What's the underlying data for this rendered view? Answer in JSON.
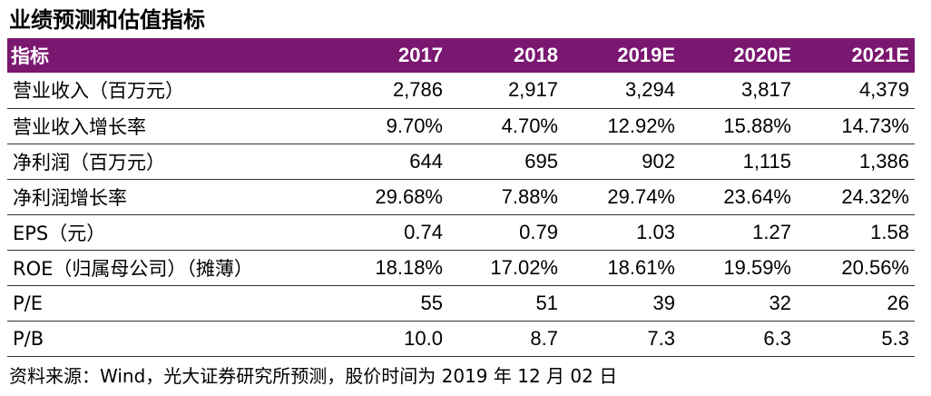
{
  "title": "业绩预测和估值指标",
  "table": {
    "header": {
      "label": "指标",
      "years": [
        "2017",
        "2018",
        "2019E",
        "2020E",
        "2021E"
      ]
    },
    "rows": [
      {
        "label": "营业收入（百万元）",
        "values": [
          "2,786",
          "2,917",
          "3,294",
          "3,817",
          "4,379"
        ]
      },
      {
        "label": "营业收入增长率",
        "values": [
          "9.70%",
          "4.70%",
          "12.92%",
          "15.88%",
          "14.73%"
        ]
      },
      {
        "label": "净利润（百万元）",
        "values": [
          "644",
          "695",
          "902",
          "1,115",
          "1,386"
        ]
      },
      {
        "label": "净利润增长率",
        "values": [
          "29.68%",
          "7.88%",
          "29.74%",
          "23.64%",
          "24.32%"
        ]
      },
      {
        "label": "EPS（元）",
        "values": [
          "0.74",
          "0.79",
          "1.03",
          "1.27",
          "1.58"
        ]
      },
      {
        "label": "ROE（归属母公司）（摊薄）",
        "values": [
          "18.18%",
          "17.02%",
          "18.61%",
          "19.59%",
          "20.56%"
        ]
      },
      {
        "label": "P/E",
        "values": [
          "55",
          "51",
          "39",
          "32",
          "26"
        ]
      },
      {
        "label": "P/B",
        "values": [
          "10.0",
          "8.7",
          "7.3",
          "6.3",
          "5.3"
        ]
      }
    ]
  },
  "source": "资料来源：Wind，光大证券研究所预测，股价时间为 2019 年 12 月 02 日",
  "colors": {
    "header_bg": "#7a1770",
    "header_text": "#ffffff",
    "row_border": "#333333"
  }
}
